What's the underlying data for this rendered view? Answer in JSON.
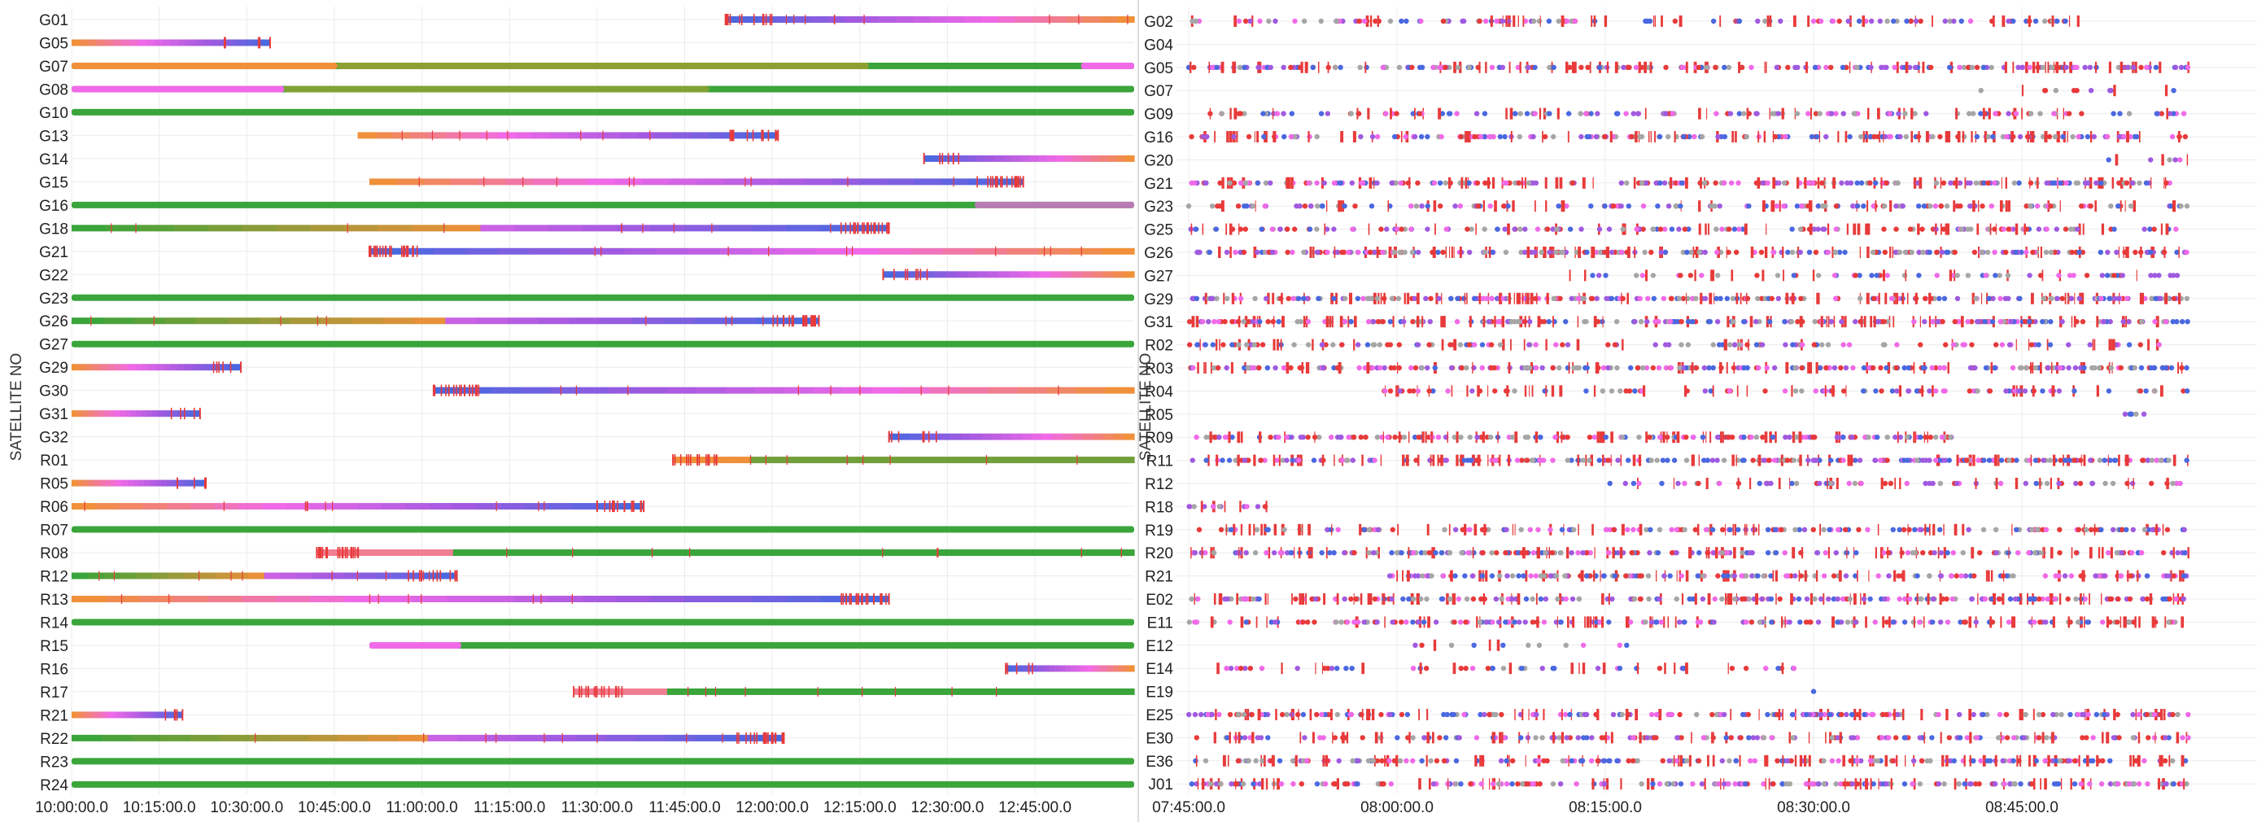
{
  "chart_data": [
    {
      "type": "scatter",
      "ylabel": "SATELLITE NO",
      "grid": true,
      "xticks": [
        "10:00:00.0",
        "10:15:00.0",
        "10:30:00.0",
        "10:45:00.0",
        "11:00:00.0",
        "11:15:00.0",
        "11:30:00.0",
        "11:45:00.0",
        "12:00:00.0",
        "12:15:00.0",
        "12:30:00.0",
        "12:45:00.0"
      ],
      "xlim": [
        "10:00:00",
        "13:02:00"
      ],
      "rows": [
        {
          "sat": "G01",
          "start": "11:52:00",
          "end": "13:02:00",
          "slip": "end-start"
        },
        {
          "sat": "G05",
          "start": "10:00:00",
          "end": "10:34:00",
          "slip": "start-end"
        },
        {
          "sat": "G07",
          "start": "10:00:00",
          "end": "13:02:00",
          "slip": "none"
        },
        {
          "sat": "G08",
          "start": "10:00:00",
          "end": "13:02:00",
          "slip": "none"
        },
        {
          "sat": "G10",
          "start": "10:00:00",
          "end": "13:02:00",
          "slip": "none"
        },
        {
          "sat": "G13",
          "start": "10:49:00",
          "end": "12:01:00",
          "slip": "start-end"
        },
        {
          "sat": "G14",
          "start": "12:26:00",
          "end": "13:02:00",
          "slip": "end-start"
        },
        {
          "sat": "G15",
          "start": "10:51:00",
          "end": "12:43:00",
          "slip": "start-end"
        },
        {
          "sat": "G16",
          "start": "10:00:00",
          "end": "13:02:00",
          "slip": "none"
        },
        {
          "sat": "G18",
          "start": "10:00:00",
          "end": "12:20:00",
          "slip": "start-end"
        },
        {
          "sat": "G21",
          "start": "10:51:00",
          "end": "13:02:00",
          "slip": "end-start"
        },
        {
          "sat": "G22",
          "start": "12:19:00",
          "end": "13:02:00",
          "slip": "end-start"
        },
        {
          "sat": "G23",
          "start": "10:00:00",
          "end": "13:02:00",
          "slip": "none"
        },
        {
          "sat": "G26",
          "start": "10:00:00",
          "end": "12:08:00",
          "slip": "start-end"
        },
        {
          "sat": "G27",
          "start": "10:00:00",
          "end": "13:02:00",
          "slip": "none"
        },
        {
          "sat": "G29",
          "start": "10:00:00",
          "end": "10:29:00",
          "slip": "start-end"
        },
        {
          "sat": "G30",
          "start": "11:02:00",
          "end": "13:02:00",
          "slip": "end-start"
        },
        {
          "sat": "G31",
          "start": "10:00:00",
          "end": "10:22:00",
          "slip": "start-end"
        },
        {
          "sat": "G32",
          "start": "12:20:00",
          "end": "13:02:00",
          "slip": "end-start"
        },
        {
          "sat": "R01",
          "start": "11:43:00",
          "end": "13:02:00",
          "slip": "end-start"
        },
        {
          "sat": "R05",
          "start": "10:00:00",
          "end": "10:23:00",
          "slip": "start-end"
        },
        {
          "sat": "R06",
          "start": "10:00:00",
          "end": "11:38:00",
          "slip": "start-end"
        },
        {
          "sat": "R07",
          "start": "10:00:00",
          "end": "13:02:00",
          "slip": "none"
        },
        {
          "sat": "R08",
          "start": "10:42:00",
          "end": "13:02:00",
          "slip": "end-start"
        },
        {
          "sat": "R12",
          "start": "10:00:00",
          "end": "11:06:00",
          "slip": "start-end"
        },
        {
          "sat": "R13",
          "start": "10:00:00",
          "end": "12:20:00",
          "slip": "start-end"
        },
        {
          "sat": "R14",
          "start": "10:00:00",
          "end": "13:02:00",
          "slip": "none"
        },
        {
          "sat": "R15",
          "start": "10:51:00",
          "end": "13:02:00",
          "slip": "none"
        },
        {
          "sat": "R16",
          "start": "12:40:00",
          "end": "13:02:00",
          "slip": "end-start"
        },
        {
          "sat": "R17",
          "start": "11:26:00",
          "end": "13:02:00",
          "slip": "end-start"
        },
        {
          "sat": "R21",
          "start": "10:00:00",
          "end": "10:19:00",
          "slip": "start-end"
        },
        {
          "sat": "R22",
          "start": "10:00:00",
          "end": "12:02:00",
          "slip": "start-end"
        },
        {
          "sat": "R23",
          "start": "10:00:00",
          "end": "13:02:00",
          "slip": "none"
        },
        {
          "sat": "R24",
          "start": "10:00:00",
          "end": "13:02:00",
          "slip": "none"
        }
      ],
      "colors": {
        "green": "#3aa53a",
        "orange": "#f0903a",
        "magenta": "#f06ae8",
        "blue": "#4a68e0",
        "purple": "#a05ae0",
        "red": "#e83a3a",
        "olive": "#b0a030"
      }
    },
    {
      "type": "scatter",
      "ylabel": "SATELLITE NO",
      "grid": true,
      "xticks": [
        "07:45:00.0",
        "08:00:00.0",
        "08:15:00.0",
        "08:30:00.0",
        "08:45:00.0"
      ],
      "xlim": [
        "07:45:00",
        "08:57:00"
      ],
      "rows": [
        {
          "sat": "G02",
          "start": "07:45:00",
          "end": "08:50:00",
          "density": 0.55
        },
        {
          "sat": "G04",
          "start": "",
          "end": "",
          "density": 0
        },
        {
          "sat": "G05",
          "start": "07:45:00",
          "end": "08:57:00",
          "density": 0.85
        },
        {
          "sat": "G07",
          "start": "08:42:00",
          "end": "08:57:00",
          "density": 0.2
        },
        {
          "sat": "G09",
          "start": "07:45:00",
          "end": "08:57:00",
          "density": 0.55
        },
        {
          "sat": "G16",
          "start": "07:45:00",
          "end": "08:57:00",
          "density": 0.8
        },
        {
          "sat": "G20",
          "start": "08:51:00",
          "end": "08:57:00",
          "density": 0.3
        },
        {
          "sat": "G21",
          "start": "07:45:00",
          "end": "08:57:00",
          "density": 0.9
        },
        {
          "sat": "G23",
          "start": "07:45:00",
          "end": "08:57:00",
          "density": 0.6
        },
        {
          "sat": "G25",
          "start": "07:45:00",
          "end": "08:57:00",
          "density": 0.6
        },
        {
          "sat": "G26",
          "start": "07:45:00",
          "end": "08:57:00",
          "density": 0.9
        },
        {
          "sat": "G27",
          "start": "08:12:00",
          "end": "08:57:00",
          "density": 0.4
        },
        {
          "sat": "G29",
          "start": "07:45:00",
          "end": "08:57:00",
          "density": 0.95
        },
        {
          "sat": "G31",
          "start": "07:45:00",
          "end": "08:57:00",
          "density": 0.9
        },
        {
          "sat": "R02",
          "start": "07:45:00",
          "end": "08:55:00",
          "density": 0.5
        },
        {
          "sat": "R03",
          "start": "07:45:00",
          "end": "08:57:00",
          "density": 0.85
        },
        {
          "sat": "R04",
          "start": "07:59:00",
          "end": "08:57:00",
          "density": 0.55
        },
        {
          "sat": "R05",
          "start": "08:52:00",
          "end": "08:57:00",
          "density": 0.3
        },
        {
          "sat": "R09",
          "start": "07:45:00",
          "end": "08:40:00",
          "density": 0.85
        },
        {
          "sat": "R11",
          "start": "07:45:00",
          "end": "08:57:00",
          "density": 0.95
        },
        {
          "sat": "R12",
          "start": "08:15:00",
          "end": "08:57:00",
          "density": 0.5
        },
        {
          "sat": "R18",
          "start": "07:45:00",
          "end": "07:51:00",
          "density": 0.7
        },
        {
          "sat": "R19",
          "start": "07:45:00",
          "end": "08:57:00",
          "density": 0.65
        },
        {
          "sat": "R20",
          "start": "07:45:00",
          "end": "08:57:00",
          "density": 0.8
        },
        {
          "sat": "R21",
          "start": "07:59:00",
          "end": "08:57:00",
          "density": 0.85
        },
        {
          "sat": "E02",
          "start": "07:45:00",
          "end": "08:57:00",
          "density": 0.9
        },
        {
          "sat": "E11",
          "start": "07:45:00",
          "end": "08:57:00",
          "density": 0.75
        },
        {
          "sat": "E12",
          "start": "08:01:00",
          "end": "08:17:00",
          "density": 0.2
        },
        {
          "sat": "E14",
          "start": "07:45:00",
          "end": "08:29:00",
          "density": 0.35
        },
        {
          "sat": "E19",
          "start": "08:30:00",
          "end": "08:31:00",
          "density": 0.2
        },
        {
          "sat": "E25",
          "start": "07:45:00",
          "end": "08:57:00",
          "density": 0.75
        },
        {
          "sat": "E30",
          "start": "07:45:00",
          "end": "08:57:00",
          "density": 0.65
        },
        {
          "sat": "E36",
          "start": "07:45:00",
          "end": "08:57:00",
          "density": 0.8
        },
        {
          "sat": "J01",
          "start": "07:45:00",
          "end": "08:57:00",
          "density": 0.8
        }
      ],
      "colors": {
        "red": "#e83a3a",
        "gray": "#a6a6a6",
        "blue": "#4a68e0",
        "magenta": "#f06ae8",
        "purple": "#a05ae0",
        "green": "#3aa53a"
      }
    }
  ]
}
